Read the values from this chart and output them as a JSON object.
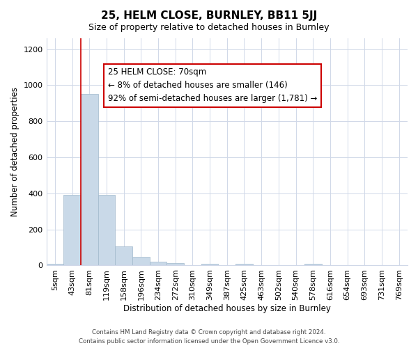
{
  "title": "25, HELM CLOSE, BURNLEY, BB11 5JJ",
  "subtitle": "Size of property relative to detached houses in Burnley",
  "xlabel": "Distribution of detached houses by size in Burnley",
  "ylabel": "Number of detached properties",
  "footer_lines": [
    "Contains HM Land Registry data © Crown copyright and database right 2024.",
    "Contains public sector information licensed under the Open Government Licence v3.0."
  ],
  "bin_labels": [
    "5sqm",
    "43sqm",
    "81sqm",
    "119sqm",
    "158sqm",
    "196sqm",
    "234sqm",
    "272sqm",
    "310sqm",
    "349sqm",
    "387sqm",
    "425sqm",
    "463sqm",
    "502sqm",
    "540sqm",
    "578sqm",
    "616sqm",
    "654sqm",
    "693sqm",
    "731sqm",
    "769sqm"
  ],
  "bar_heights": [
    10,
    390,
    950,
    390,
    105,
    50,
    20,
    15,
    0,
    10,
    0,
    10,
    0,
    0,
    0,
    10,
    0,
    0,
    0,
    0,
    0
  ],
  "bar_color": "#c9d9e8",
  "bar_edge_color": "#a0b8cc",
  "highlight_line_color": "#cc0000",
  "annotation_box": {
    "text_lines": [
      "25 HELM CLOSE: 70sqm",
      "← 8% of detached houses are smaller (146)",
      "92% of semi-detached houses are larger (1,781) →"
    ],
    "box_color": "#ffffff",
    "box_edge_color": "#cc0000"
  },
  "ylim": [
    0,
    1260
  ],
  "yticks": [
    0,
    200,
    400,
    600,
    800,
    1000,
    1200
  ],
  "background_color": "#ffffff",
  "grid_color": "#d0d8e8"
}
